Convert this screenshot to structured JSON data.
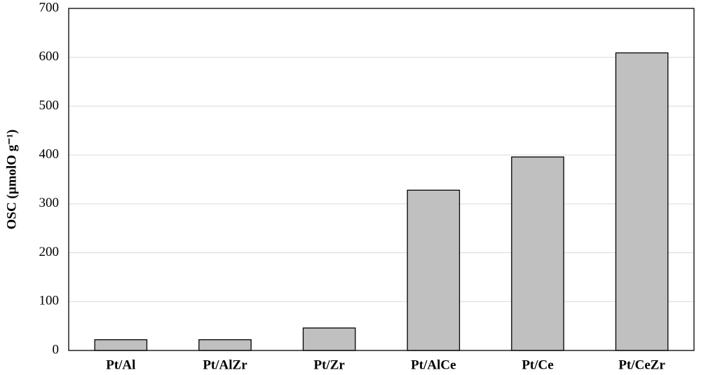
{
  "chart_data": {
    "type": "bar",
    "y_label": "OSC (µmolO g⁻¹)",
    "categories": [
      "Pt/Al",
      "Pt/AlZr",
      "Pt/Zr",
      "Pt/AlCe",
      "Pt/Ce",
      "Pt/CeZr"
    ],
    "values": [
      22,
      22,
      46,
      328,
      396,
      609
    ],
    "color": "#c0c0c0",
    "ylim": [
      0,
      700
    ],
    "yticks": [
      0,
      100,
      200,
      300,
      400,
      500,
      600,
      700
    ],
    "grid": true
  }
}
